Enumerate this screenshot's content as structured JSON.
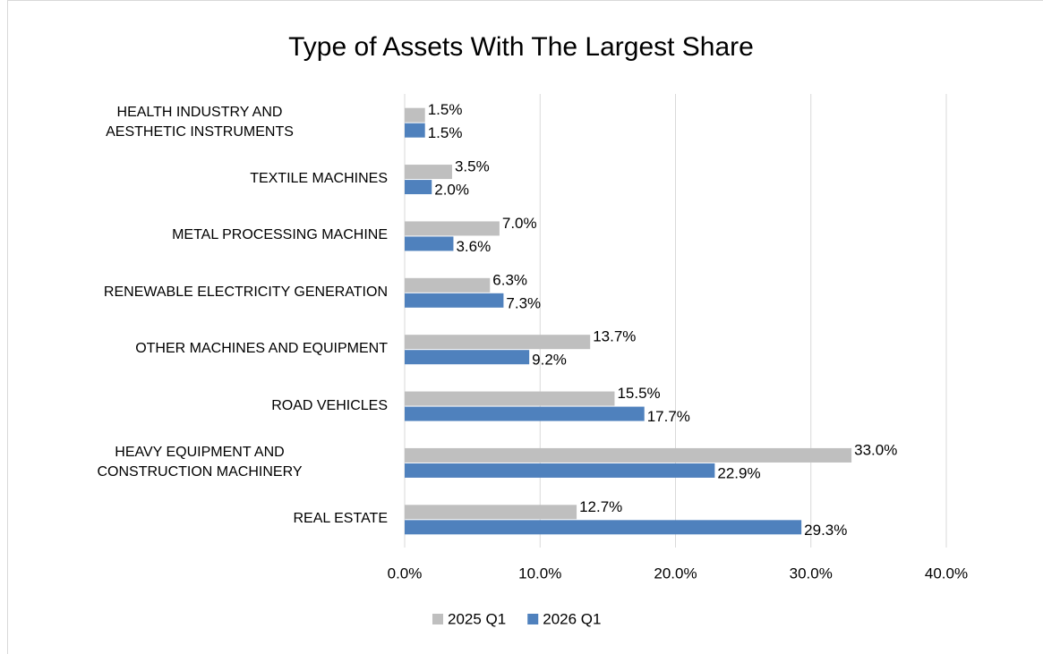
{
  "chart_data": {
    "type": "hbar",
    "title": "Type of Assets With The Largest Share",
    "categories": [
      "HEALTH INDUSTRY AND\nAESTHETIC INSTRUMENTS",
      "TEXTILE MACHINES",
      "METAL PROCESSING MACHINE",
      "RENEWABLE ELECTRICITY GENERATION",
      "OTHER MACHINES AND EQUIPMENT",
      "ROAD VEHICLES",
      "HEAVY EQUIPMENT AND\nCONSTRUCTION MACHINERY",
      "REAL ESTATE"
    ],
    "series": [
      {
        "name": "2025 Q1",
        "color": "#bfbfbf",
        "values": [
          1.5,
          3.5,
          7.0,
          6.3,
          13.7,
          15.5,
          33.0,
          12.7
        ],
        "value_labels": [
          "1.5%",
          "3.5%",
          "7.0%",
          "6.3%",
          "13.7%",
          "15.5%",
          "33.0%",
          "12.7%"
        ]
      },
      {
        "name": "2026 Q1",
        "color": "#4f81bd",
        "values": [
          1.5,
          2.0,
          3.6,
          7.3,
          9.2,
          17.7,
          22.9,
          29.3
        ],
        "value_labels": [
          "1.5%",
          "2.0%",
          "3.6%",
          "7.3%",
          "9.2%",
          "17.7%",
          "22.9%",
          "29.3%"
        ]
      }
    ],
    "xlim": [
      0,
      40
    ],
    "xticks": [
      {
        "value": 0,
        "label": "0.0%"
      },
      {
        "value": 10,
        "label": "10.0%"
      },
      {
        "value": 20,
        "label": "20.0%"
      },
      {
        "value": 30,
        "label": "30.0%"
      },
      {
        "value": 40,
        "label": "40.0%"
      }
    ],
    "grid": true,
    "legend": "bottom"
  }
}
